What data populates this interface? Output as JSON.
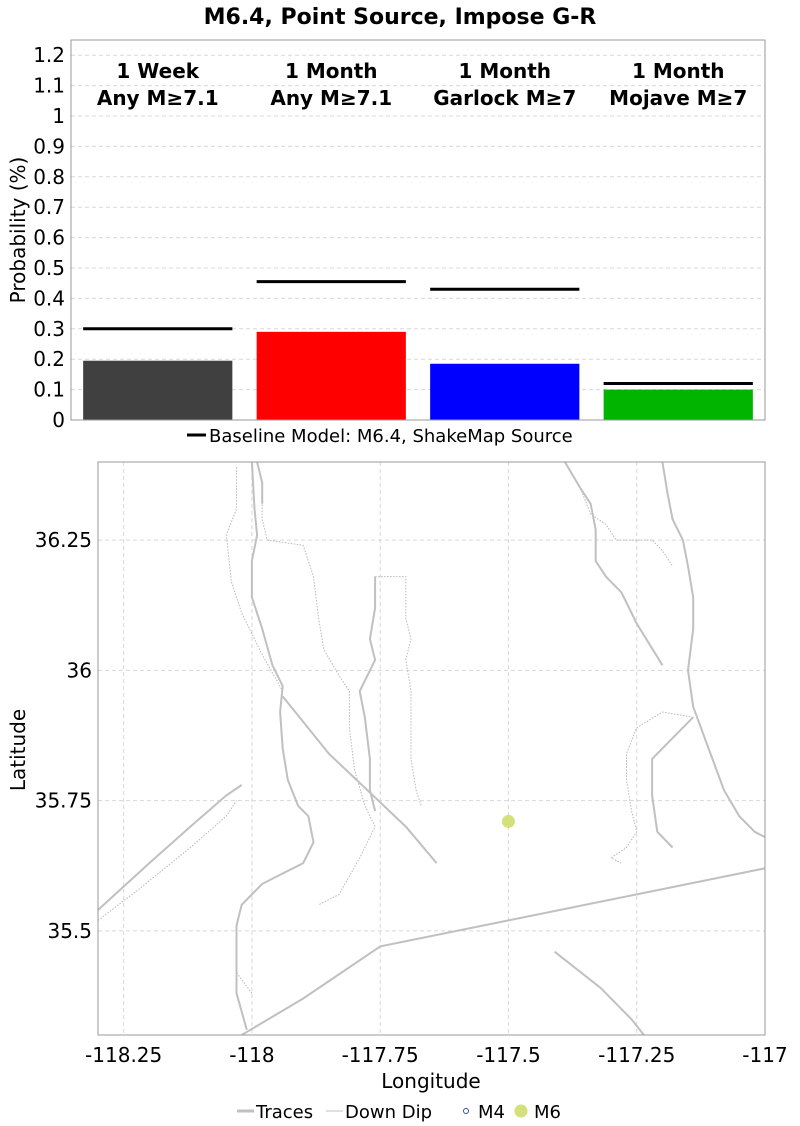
{
  "chart_data": [
    {
      "type": "bar",
      "title": "M6.4, Point Source, Impose G-R",
      "ylabel": "Probability (%)",
      "xlabel": "",
      "ylim": [
        0,
        1.25
      ],
      "yticks": [
        "0",
        "0.1",
        "0.2",
        "0.3",
        "0.4",
        "0.5",
        "0.6",
        "0.7",
        "0.8",
        "0.9",
        "1",
        "1.1",
        "1.2"
      ],
      "grid": true,
      "categories": [
        [
          "1 Week",
          "Any M≥7.1"
        ],
        [
          "1 Month",
          "Any M≥7.1"
        ],
        [
          "1 Month",
          "Garlock M≥7"
        ],
        [
          "1 Month",
          "Mojave M≥7"
        ]
      ],
      "values": [
        0.195,
        0.29,
        0.185,
        0.1
      ],
      "colors": [
        "#404040",
        "#ff0000",
        "#0000ff",
        "#00b400"
      ],
      "baseline": {
        "name": "Baseline Model: M6.4, ShakeMap Source",
        "values": [
          0.3,
          0.455,
          0.43,
          0.12
        ],
        "color": "#000000"
      },
      "legend_position": "bottom"
    },
    {
      "type": "map",
      "xlabel": "Longitude",
      "ylabel": "Latitude",
      "xlim": [
        -118.3,
        -117.0
      ],
      "ylim": [
        35.3,
        36.4
      ],
      "xticks": [
        "-118.25",
        "-118",
        "-117.75",
        "-117.5",
        "-117.25",
        "-117"
      ],
      "yticks": [
        "35.5",
        "35.75",
        "36",
        "36.25"
      ],
      "grid": true,
      "legend": [
        {
          "name": "Traces",
          "kind": "line",
          "color": "#c0c0c0"
        },
        {
          "name": "Down Dip",
          "kind": "line",
          "color": "#e0e0e0"
        },
        {
          "name": "M4",
          "kind": "hollow-circle",
          "color": "#334f99"
        },
        {
          "name": "M6",
          "kind": "dot",
          "color": "#d4e07a"
        }
      ],
      "legend_position": "bottom",
      "events": [
        {
          "lon": -117.5,
          "lat": 35.71,
          "mag_class": "M6"
        }
      ],
      "traces": [
        [
          [
            -118.0,
            36.4
          ],
          [
            -117.995,
            36.31
          ],
          [
            -117.99,
            36.26
          ],
          [
            -118.0,
            36.21
          ],
          [
            -118.0,
            36.14
          ],
          [
            -117.98,
            36.08
          ],
          [
            -117.96,
            36.01
          ],
          [
            -117.94,
            35.97
          ],
          [
            -117.945,
            35.92
          ],
          [
            -117.94,
            35.85
          ],
          [
            -117.93,
            35.79
          ],
          [
            -117.91,
            35.74
          ],
          [
            -117.89,
            35.72
          ],
          [
            -117.88,
            35.67
          ],
          [
            -117.9,
            35.63
          ],
          [
            -117.94,
            35.61
          ],
          [
            -117.98,
            35.59
          ],
          [
            -118.02,
            35.55
          ],
          [
            -118.03,
            35.51
          ],
          [
            -118.03,
            35.44
          ],
          [
            -118.03,
            35.38
          ],
          [
            -118.01,
            35.31
          ]
        ],
        [
          [
            -117.94,
            35.95
          ],
          [
            -117.85,
            35.84
          ],
          [
            -117.7,
            35.7
          ],
          [
            -117.64,
            35.63
          ]
        ],
        [
          [
            -117.76,
            36.18
          ],
          [
            -117.76,
            36.12
          ],
          [
            -117.77,
            36.06
          ],
          [
            -117.76,
            36.02
          ],
          [
            -117.79,
            35.96
          ],
          [
            -117.78,
            35.91
          ],
          [
            -117.77,
            35.83
          ],
          [
            -117.77,
            35.77
          ],
          [
            -117.76,
            35.73
          ]
        ],
        [
          [
            -117.99,
            36.4
          ],
          [
            -117.98,
            36.36
          ],
          [
            -117.98,
            36.32
          ]
        ],
        [
          [
            -117.39,
            36.4
          ],
          [
            -117.36,
            36.35
          ],
          [
            -117.34,
            36.32
          ],
          [
            -117.33,
            36.27
          ],
          [
            -117.33,
            36.21
          ],
          [
            -117.31,
            36.18
          ],
          [
            -117.28,
            36.15
          ],
          [
            -117.25,
            36.09
          ],
          [
            -117.2,
            36.01
          ]
        ],
        [
          [
            -117.2,
            36.4
          ],
          [
            -117.19,
            36.34
          ],
          [
            -117.18,
            36.29
          ],
          [
            -117.16,
            36.25
          ],
          [
            -117.15,
            36.2
          ],
          [
            -117.14,
            36.14
          ],
          [
            -117.14,
            36.08
          ],
          [
            -117.15,
            36.0
          ],
          [
            -117.14,
            35.93
          ],
          [
            -117.11,
            35.85
          ],
          [
            -117.08,
            35.77
          ],
          [
            -117.05,
            35.72
          ],
          [
            -117.02,
            35.69
          ],
          [
            -117.0,
            35.68
          ]
        ],
        [
          [
            -117.14,
            35.91
          ],
          [
            -117.18,
            35.87
          ],
          [
            -117.22,
            35.83
          ],
          [
            -117.22,
            35.76
          ],
          [
            -117.21,
            35.69
          ],
          [
            -117.18,
            35.66
          ]
        ],
        [
          [
            -118.3,
            35.54
          ],
          [
            -118.2,
            35.63
          ],
          [
            -118.12,
            35.7
          ],
          [
            -118.05,
            35.76
          ],
          [
            -118.02,
            35.78
          ]
        ],
        [
          [
            -118.02,
            35.3
          ],
          [
            -117.9,
            35.37
          ],
          [
            -117.75,
            35.47
          ],
          [
            -117.5,
            35.52
          ],
          [
            -117.25,
            35.57
          ],
          [
            -117.0,
            35.62
          ]
        ],
        [
          [
            -117.41,
            35.46
          ],
          [
            -117.32,
            35.39
          ],
          [
            -117.26,
            35.33
          ],
          [
            -117.22,
            35.28
          ]
        ]
      ],
      "down_dip": [
        [
          [
            -118.03,
            36.39
          ],
          [
            -118.03,
            36.31
          ],
          [
            -118.05,
            36.26
          ],
          [
            -118.04,
            36.17
          ],
          [
            -118.02,
            36.11
          ],
          [
            -117.98,
            36.03
          ],
          [
            -117.94,
            35.96
          ]
        ],
        [
          [
            -117.98,
            36.33
          ],
          [
            -117.98,
            36.29
          ],
          [
            -117.97,
            36.25
          ],
          [
            -117.9,
            36.24
          ],
          [
            -117.88,
            36.18
          ],
          [
            -117.87,
            36.1
          ],
          [
            -117.86,
            36.04
          ],
          [
            -117.83,
            35.99
          ],
          [
            -117.81,
            35.96
          ],
          [
            -117.81,
            35.89
          ],
          [
            -117.8,
            35.81
          ],
          [
            -117.78,
            35.74
          ],
          [
            -117.76,
            35.7
          ],
          [
            -117.79,
            35.64
          ],
          [
            -117.83,
            35.57
          ],
          [
            -117.87,
            35.55
          ]
        ],
        [
          [
            -117.76,
            36.18
          ],
          [
            -117.7,
            36.18
          ],
          [
            -117.7,
            36.1
          ],
          [
            -117.69,
            36.06
          ],
          [
            -117.7,
            36.02
          ],
          [
            -117.69,
            35.96
          ],
          [
            -117.69,
            35.89
          ],
          [
            -117.69,
            35.83
          ],
          [
            -117.68,
            35.77
          ],
          [
            -117.67,
            35.74
          ]
        ],
        [
          [
            -117.14,
            35.91
          ],
          [
            -117.2,
            35.92
          ],
          [
            -117.25,
            35.89
          ],
          [
            -117.27,
            35.84
          ],
          [
            -117.27,
            35.79
          ],
          [
            -117.26,
            35.73
          ],
          [
            -117.25,
            35.69
          ],
          [
            -117.27,
            35.66
          ],
          [
            -117.3,
            35.64
          ],
          [
            -117.28,
            35.63
          ]
        ],
        [
          [
            -117.36,
            36.35
          ],
          [
            -117.34,
            36.3
          ],
          [
            -117.31,
            36.28
          ],
          [
            -117.29,
            36.25
          ],
          [
            -117.22,
            36.25
          ],
          [
            -117.2,
            36.23
          ],
          [
            -117.18,
            36.2
          ]
        ],
        [
          [
            -118.3,
            35.52
          ],
          [
            -118.22,
            35.58
          ],
          [
            -118.12,
            35.66
          ],
          [
            -118.05,
            35.72
          ],
          [
            -118.03,
            35.75
          ]
        ],
        [
          [
            -118.0,
            35.38
          ],
          [
            -118.03,
            35.42
          ]
        ]
      ]
    }
  ]
}
